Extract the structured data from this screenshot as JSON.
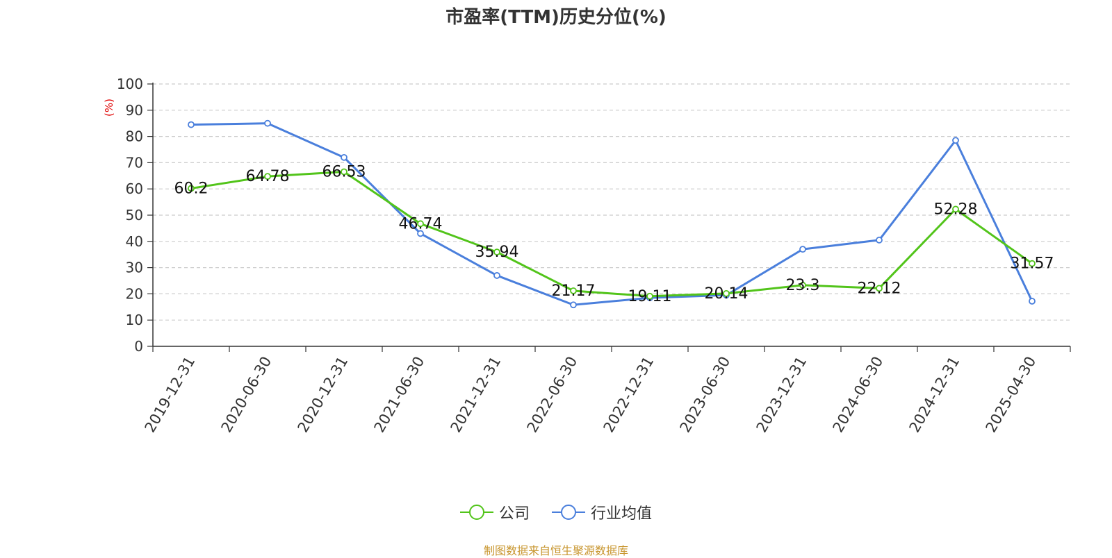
{
  "chart_data": {
    "type": "line",
    "title": "市盈率(TTM)历史分位(%)",
    "ylabel": "(%)",
    "ylim": [
      0,
      100
    ],
    "yticks": [
      0,
      10,
      20,
      30,
      40,
      50,
      60,
      70,
      80,
      90,
      100
    ],
    "grid": true,
    "legend_position": "bottom",
    "categories": [
      "2019-12-31",
      "2020-06-30",
      "2020-12-31",
      "2021-06-30",
      "2021-12-31",
      "2022-06-30",
      "2022-12-31",
      "2023-06-30",
      "2023-12-31",
      "2024-06-30",
      "2024-12-31",
      "2025-04-30"
    ],
    "series": [
      {
        "name": "公司",
        "color": "#52c41a",
        "show_labels": true,
        "values": [
          60.2,
          64.78,
          66.53,
          46.74,
          35.94,
          21.17,
          19.11,
          20.14,
          23.3,
          22.12,
          52.28,
          31.57
        ]
      },
      {
        "name": "行业均值",
        "color": "#4a7fdc",
        "show_labels": false,
        "values": [
          84.5,
          85.0,
          72.0,
          43.0,
          27.0,
          15.8,
          18.5,
          19.5,
          37.0,
          40.5,
          78.5,
          17.2
        ]
      }
    ]
  },
  "footer": {
    "source": "制图数据来自恒生聚源数据库"
  }
}
